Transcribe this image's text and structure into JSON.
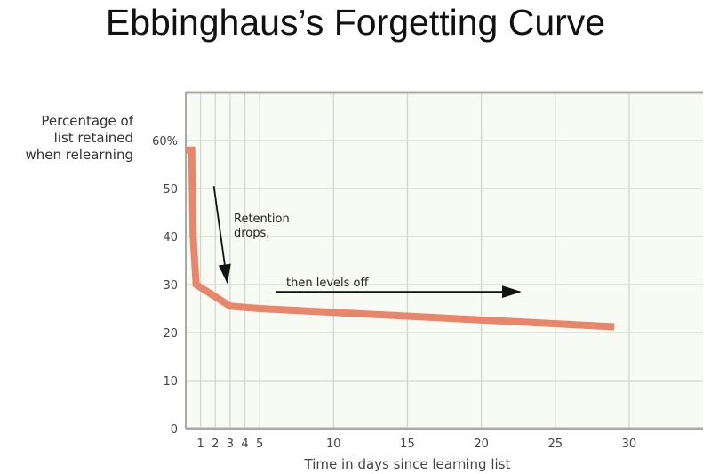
{
  "chart_data": {
    "type": "line",
    "title": "Ebbinghaus’s Forgetting Curve",
    "xlabel": "Time in days since learning list",
    "ylabel": "Percentage of\nlist retained\nwhen relearning",
    "xlim": [
      0,
      35
    ],
    "ylim": [
      0,
      70
    ],
    "x_ticks": [
      1,
      2,
      3,
      4,
      5,
      10,
      15,
      20,
      25,
      30
    ],
    "y_ticks": [
      0,
      10,
      20,
      30,
      40,
      50,
      60
    ],
    "y_tick_labels": [
      "0",
      "10",
      "20",
      "30",
      "40",
      "50",
      "60%"
    ],
    "grid": true,
    "series": [
      {
        "x": [
          0,
          0.4,
          0.5,
          0.7,
          3,
          5,
          29
        ],
        "y": [
          58,
          58,
          40,
          30,
          25.5,
          25,
          21.2
        ],
        "color": "#e8866a"
      }
    ],
    "annotations": [
      {
        "text": "Retention\ndrops,",
        "arrow_from": [
          1.9,
          50.5
        ],
        "arrow_to": [
          2.8,
          30.5
        ]
      },
      {
        "text": "then levels off",
        "arrow_from": [
          6.1,
          28.5
        ],
        "arrow_to": [
          22.6,
          28.5
        ]
      }
    ],
    "colors": {
      "plot_background": "#f8faf4",
      "grid": "#d4d6d0",
      "axis": "#aaaaaa"
    }
  }
}
